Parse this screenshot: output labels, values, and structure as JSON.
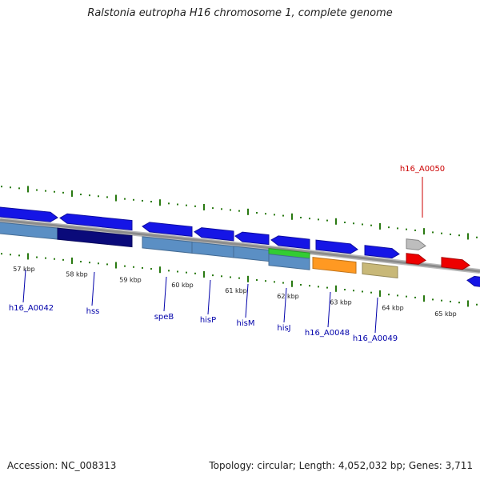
{
  "title": "Ralstonia eutropha H16 chromosome 1, complete genome",
  "footer": {
    "accession": "Accession: NC_008313",
    "stats": "Topology: circular; Length: 4,052,032 bp; Genes: 3,711"
  },
  "map": {
    "kbp_labels": [
      "57 kbp",
      "58 kbp",
      "59 kbp",
      "60 kbp",
      "61 kbp",
      "62 kbp",
      "63 kbp",
      "64 kbp",
      "65 kbp"
    ],
    "gene_labels": [
      {
        "name": "h16_A0042",
        "color": "#0000aa"
      },
      {
        "name": "hss",
        "color": "#0000aa"
      },
      {
        "name": "speB",
        "color": "#0000aa"
      },
      {
        "name": "hisP",
        "color": "#0000aa"
      },
      {
        "name": "hisM",
        "color": "#0000aa"
      },
      {
        "name": "hisJ",
        "color": "#0000aa"
      },
      {
        "name": "h16_A0048",
        "color": "#0000aa"
      },
      {
        "name": "h16_A0049",
        "color": "#0000aa"
      },
      {
        "name": "h16_A0050",
        "color": "#cc0000"
      }
    ],
    "colors": {
      "gene_blue": "#1515e6",
      "gene_red": "#ee0000",
      "gene_grey": "#bdbdbd",
      "cog_steelblue": "#5b8fc4",
      "cog_navy": "#0a0a7a",
      "cog_green": "#33cc33",
      "cog_orange": "#ff9922",
      "cog_khaki": "#c8b878",
      "backbone": "#8c8c8c",
      "tick_green": "#2a7a12"
    }
  }
}
